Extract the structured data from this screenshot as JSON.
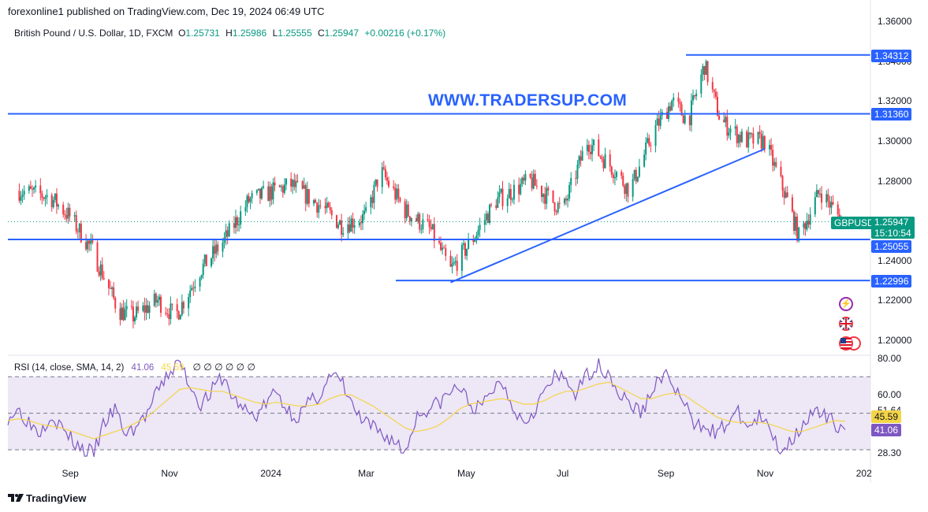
{
  "header": {
    "published": "forexonline1 published on TradingView.com, Dec 19, 2024 06:49 UTC"
  },
  "legend": {
    "symbol": "British Pound / U.S. Dollar, 1D, FXCM",
    "o_label": "O",
    "o": "1.25731",
    "h_label": "H",
    "h": "1.25986",
    "l_label": "L",
    "l": "1.25555",
    "c_label": "C",
    "c": "1.25947",
    "change": "+0.00216 (+0.17%)"
  },
  "watermark": "WWW.TRADERSUP.COM",
  "colors": {
    "up": "#089981",
    "down": "#f23645",
    "line": "#2962ff",
    "rsi": "#7e57c2",
    "rsi_ma": "#f5d547",
    "rsi_band": "#ede7f6"
  },
  "price_tags": {
    "top": "1.34312",
    "upper": "1.31360",
    "symbol": "GBPUSD",
    "current": "1.25947",
    "countdown": "15:10:54",
    "support": "1.25055",
    "bottom": "1.22996"
  },
  "rsi_legend": {
    "label": "RSI (14, close, SMA, 14, 2)",
    "rsi": "41.06",
    "ma": "45.59",
    "nulls": "∅ ∅ ∅ ∅ ∅ ∅"
  },
  "rsi_tags": {
    "ma": "45.59",
    "rsi": "41.06"
  },
  "price_axis": [
    "1.36000",
    "1.34000",
    "1.32000",
    "1.30000",
    "1.28000",
    "1.24000",
    "1.22000",
    "1.20000"
  ],
  "rsi_axis": [
    "80.00",
    "60.00",
    "51.64",
    "28.30"
  ],
  "time_axis": [
    "Sep",
    "Nov",
    "2024",
    "Mar",
    "May",
    "Jul",
    "Sep",
    "Nov",
    "202"
  ],
  "footer": {
    "brand": "TradingView"
  },
  "chart_data": [
    {
      "type": "candlestick",
      "title": "British Pound / U.S. Dollar, 1D, FXCM",
      "ylim": [
        1.195,
        1.365
      ],
      "y_ticks": [
        1.36,
        1.34,
        1.32,
        1.3,
        1.28,
        1.24,
        1.22,
        1.2
      ],
      "x_ticks": [
        "Sep",
        "Nov",
        "2024",
        "Mar",
        "May",
        "Jul",
        "Sep",
        "Nov",
        "202"
      ],
      "close_path": [
        [
          "2023-08-01",
          1.275
        ],
        [
          "2023-08-20",
          1.272
        ],
        [
          "2023-09-01",
          1.262
        ],
        [
          "2023-09-15",
          1.245
        ],
        [
          "2023-10-01",
          1.215
        ],
        [
          "2023-10-10",
          1.212
        ],
        [
          "2023-10-25",
          1.22
        ],
        [
          "2023-11-05",
          1.212
        ],
        [
          "2023-11-20",
          1.235
        ],
        [
          "2023-12-05",
          1.25
        ],
        [
          "2023-12-20",
          1.27
        ],
        [
          "2024-01-15",
          1.278
        ],
        [
          "2024-02-01",
          1.268
        ],
        [
          "2024-02-15",
          1.258
        ],
        [
          "2024-03-01",
          1.262
        ],
        [
          "2024-03-10",
          1.285
        ],
        [
          "2024-03-25",
          1.265
        ],
        [
          "2024-04-10",
          1.255
        ],
        [
          "2024-04-22",
          1.235
        ],
        [
          "2024-05-05",
          1.25
        ],
        [
          "2024-05-20",
          1.27
        ],
        [
          "2024-06-10",
          1.28
        ],
        [
          "2024-06-30",
          1.265
        ],
        [
          "2024-07-15",
          1.3
        ],
        [
          "2024-08-01",
          1.285
        ],
        [
          "2024-08-10",
          1.275
        ],
        [
          "2024-08-25",
          1.305
        ],
        [
          "2024-09-05",
          1.32
        ],
        [
          "2024-09-15",
          1.31
        ],
        [
          "2024-09-25",
          1.338
        ],
        [
          "2024-10-05",
          1.31
        ],
        [
          "2024-10-20",
          1.3
        ],
        [
          "2024-11-01",
          1.3
        ],
        [
          "2024-11-15",
          1.27
        ],
        [
          "2024-11-22",
          1.252
        ],
        [
          "2024-12-05",
          1.275
        ],
        [
          "2024-12-19",
          1.25947
        ]
      ],
      "horizontal_lines": [
        1.34312,
        1.3136,
        1.25055,
        1.22996
      ],
      "current_price": 1.25947,
      "trendline": {
        "from": [
          "2024-04-22",
          1.229
        ],
        "to": [
          "2024-11-01",
          1.296
        ]
      }
    },
    {
      "type": "line",
      "title": "RSI (14, close, SMA, 14, 2)",
      "ylim": [
        25,
        82
      ],
      "y_ticks": [
        80.0,
        60.0,
        51.64,
        28.3
      ],
      "bands": [
        70,
        50,
        30
      ],
      "series": [
        {
          "name": "RSI",
          "last": 41.06,
          "path": [
            48,
            52,
            45,
            40,
            50,
            42,
            35,
            30,
            28,
            45,
            52,
            38,
            43,
            50,
            62,
            72,
            78,
            65,
            55,
            62,
            70,
            58,
            52,
            48,
            55,
            62,
            52,
            48,
            55,
            60,
            70,
            68,
            55,
            45,
            42,
            38,
            35,
            28,
            48,
            52,
            55,
            60,
            65,
            55,
            52,
            62,
            68,
            55,
            45,
            52,
            62,
            70,
            68,
            60,
            72,
            76,
            72,
            60,
            55,
            50,
            62,
            72,
            65,
            55,
            42,
            45,
            38,
            45,
            50,
            42,
            48,
            40,
            30,
            35,
            45,
            50,
            48,
            45,
            41
          ]
        },
        {
          "name": "SMA",
          "last": 45.59,
          "path": [
            46,
            47,
            46,
            44,
            43,
            42,
            40,
            38,
            36,
            38,
            40,
            42,
            45,
            48,
            53,
            58,
            63,
            64,
            63,
            62,
            62,
            60,
            58,
            56,
            55,
            56,
            55,
            54,
            54,
            55,
            58,
            60,
            60,
            57,
            54,
            50,
            46,
            42,
            40,
            41,
            43,
            47,
            52,
            55,
            56,
            57,
            58,
            57,
            55,
            55,
            57,
            60,
            62,
            62,
            64,
            66,
            67,
            64,
            61,
            58,
            58,
            60,
            61,
            60,
            56,
            52,
            48,
            46,
            45,
            45,
            45,
            44,
            42,
            40,
            40,
            42,
            44,
            46,
            45.59
          ]
        }
      ]
    }
  ]
}
